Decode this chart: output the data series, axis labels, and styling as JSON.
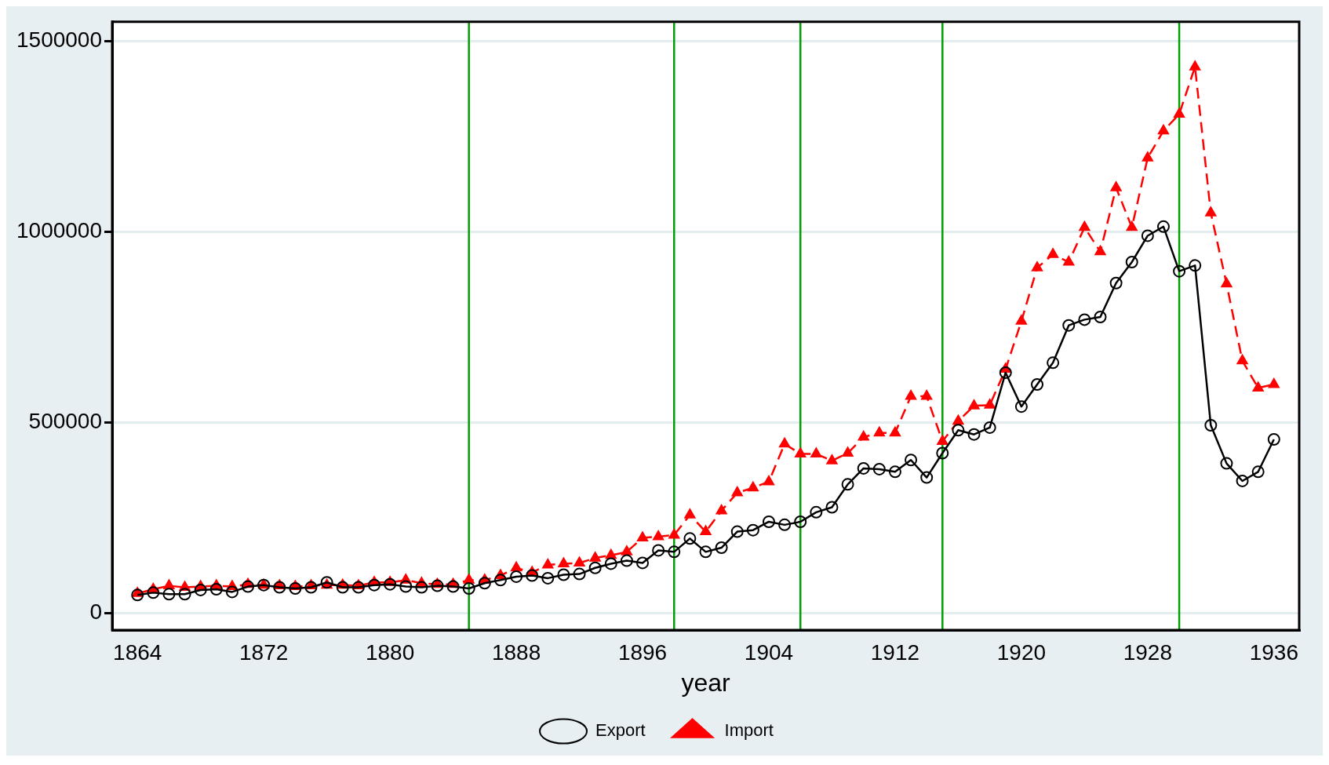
{
  "chart_data": {
    "type": "line",
    "xlabel": "year",
    "x": [
      1864,
      1865,
      1866,
      1867,
      1868,
      1869,
      1870,
      1871,
      1872,
      1873,
      1874,
      1875,
      1876,
      1877,
      1878,
      1879,
      1880,
      1881,
      1882,
      1883,
      1884,
      1885,
      1886,
      1887,
      1888,
      1889,
      1890,
      1891,
      1892,
      1893,
      1894,
      1895,
      1896,
      1897,
      1898,
      1899,
      1900,
      1901,
      1902,
      1903,
      1904,
      1905,
      1906,
      1907,
      1908,
      1909,
      1910,
      1911,
      1912,
      1913,
      1914,
      1915,
      1916,
      1917,
      1918,
      1919,
      1920,
      1921,
      1922,
      1923,
      1924,
      1925,
      1926,
      1927,
      1928,
      1929,
      1930,
      1931,
      1932,
      1933,
      1934,
      1935,
      1936
    ],
    "series": [
      {
        "name": "Export",
        "color": "#000000",
        "marker": "circle",
        "line_style": "solid",
        "values": [
          47000,
          53000,
          49000,
          49000,
          60000,
          62000,
          55000,
          69000,
          73000,
          67000,
          64000,
          67000,
          80000,
          67000,
          67000,
          73000,
          75000,
          69000,
          67000,
          71000,
          69000,
          64000,
          78000,
          86000,
          95000,
          98000,
          91000,
          100000,
          102000,
          118000,
          129000,
          137000,
          131000,
          164000,
          160000,
          195000,
          160000,
          171000,
          213000,
          217000,
          239000,
          231000,
          239000,
          264000,
          277000,
          337000,
          379000,
          377000,
          370000,
          401000,
          355000,
          419000,
          479000,
          468000,
          486000,
          630000,
          541000,
          599000,
          656000,
          754000,
          769000,
          776000,
          865000,
          920000,
          989000,
          1013000,
          896000,
          911000,
          492000,
          392000,
          346000,
          370000,
          455000
        ]
      },
      {
        "name": "Import",
        "color": "#ff0000",
        "marker": "triangle",
        "line_style": "dashed",
        "values": [
          51000,
          62000,
          71000,
          67000,
          69000,
          71000,
          69000,
          75000,
          73000,
          71000,
          69000,
          71000,
          73000,
          73000,
          71000,
          80000,
          80000,
          86000,
          78000,
          75000,
          75000,
          86000,
          86000,
          98000,
          118000,
          106000,
          126000,
          129000,
          131000,
          144000,
          151000,
          160000,
          197000,
          200000,
          204000,
          257000,
          213000,
          268000,
          315000,
          328000,
          344000,
          443000,
          417000,
          417000,
          399000,
          419000,
          461000,
          472000,
          472000,
          568000,
          568000,
          450000,
          503000,
          543000,
          545000,
          639000,
          765000,
          905000,
          940000,
          920000,
          1011000,
          947000,
          1115000,
          1011000,
          1193000,
          1264000,
          1308000,
          1432000,
          1049000,
          863000,
          661000,
          590000,
          599000
        ]
      }
    ],
    "xlim": [
      1862.4,
      1937.6
    ],
    "xticks": [
      1864,
      1872,
      1880,
      1888,
      1896,
      1904,
      1912,
      1920,
      1928,
      1936
    ],
    "ylim": [
      -45000,
      1550000
    ],
    "yticks": [
      0,
      500000,
      1000000,
      1500000
    ],
    "grid": "y",
    "legend": "bottom",
    "ref_lines": [
      {
        "axis": "x",
        "value": 1885,
        "color": "#00a000"
      },
      {
        "axis": "x",
        "value": 1898,
        "color": "#00a000"
      },
      {
        "axis": "x",
        "value": 1906,
        "color": "#00a000"
      },
      {
        "axis": "x",
        "value": 1915,
        "color": "#00a000"
      },
      {
        "axis": "x",
        "value": 1930,
        "color": "#00a000"
      }
    ]
  }
}
